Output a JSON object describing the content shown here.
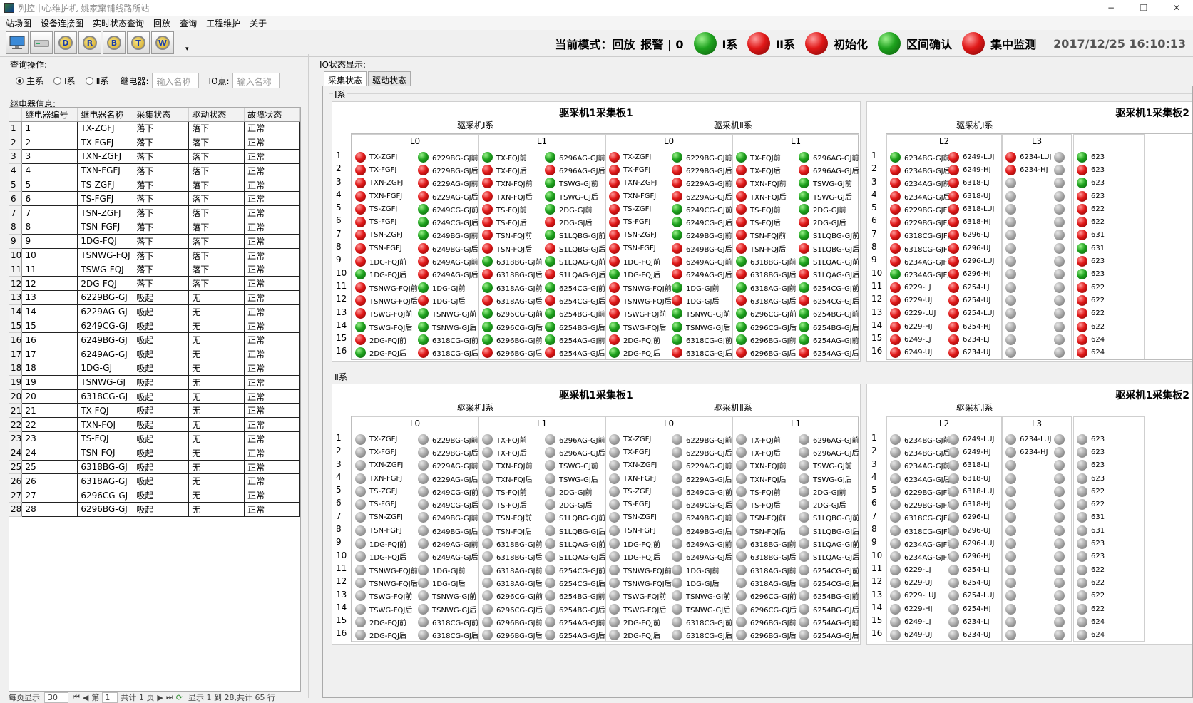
{
  "window": {
    "title": "列控中心维护机-姚家窠铺线路所站",
    "minimize": "−",
    "restore": "❐",
    "close": "✕"
  },
  "menu": [
    "站场图",
    "设备连接图",
    "实时状态查询",
    "回放",
    "查询",
    "工程维护",
    "关于"
  ],
  "toolbar": [
    {
      "label": "",
      "icon": "monitor-icon"
    },
    {
      "label": "",
      "icon": "drive-icon"
    },
    {
      "label": "D",
      "icon": "search-d-icon"
    },
    {
      "label": "R",
      "icon": "search-r-icon"
    },
    {
      "label": "B",
      "icon": "search-b-icon"
    },
    {
      "label": "T",
      "icon": "search-t-icon"
    },
    {
      "label": "W",
      "icon": "search-w-icon"
    }
  ],
  "toolbar_more": "▾",
  "status": {
    "mode": "当前模式：回放",
    "alarm": "报警 | 0",
    "sys1": "Ⅰ系",
    "sys2": "Ⅱ系",
    "init": "初始化",
    "section": "区间确认",
    "monitor": "集中监测",
    "time": "2017/12/25 16:10:13",
    "sys1_led": "green",
    "sys2_led": "red",
    "init_led": "red",
    "section_led": "green",
    "monitor_led": "red"
  },
  "query": {
    "title": "查询操作:",
    "opt_main": "主系",
    "opt_sys1": "Ⅰ系",
    "opt_sys2": "Ⅱ系",
    "relay_label": "继电器:",
    "relay_placeholder": "输入名称",
    "io_label": "IO点:",
    "io_placeholder": "输入名称"
  },
  "relay": {
    "title": "继电器信息:",
    "headers": [
      "继电器编号",
      "继电器名称",
      "采集状态",
      "驱动状态",
      "故障状态"
    ],
    "rows": [
      [
        "1",
        "TX-ZGFJ",
        "落下",
        "落下",
        "正常"
      ],
      [
        "2",
        "TX-FGFJ",
        "落下",
        "落下",
        "正常"
      ],
      [
        "3",
        "TXN-ZGFJ",
        "落下",
        "落下",
        "正常"
      ],
      [
        "4",
        "TXN-FGFJ",
        "落下",
        "落下",
        "正常"
      ],
      [
        "5",
        "TS-ZGFJ",
        "落下",
        "落下",
        "正常"
      ],
      [
        "6",
        "TS-FGFJ",
        "落下",
        "落下",
        "正常"
      ],
      [
        "7",
        "TSN-ZGFJ",
        "落下",
        "落下",
        "正常"
      ],
      [
        "8",
        "TSN-FGFJ",
        "落下",
        "落下",
        "正常"
      ],
      [
        "9",
        "1DG-FQJ",
        "落下",
        "落下",
        "正常"
      ],
      [
        "10",
        "TSNWG-FQJ",
        "落下",
        "落下",
        "正常"
      ],
      [
        "11",
        "TSWG-FQJ",
        "落下",
        "落下",
        "正常"
      ],
      [
        "12",
        "2DG-FQJ",
        "落下",
        "落下",
        "正常"
      ],
      [
        "13",
        "6229BG-GJ",
        "吸起",
        "无",
        "正常"
      ],
      [
        "14",
        "6229AG-GJ",
        "吸起",
        "无",
        "正常"
      ],
      [
        "15",
        "6249CG-GJ",
        "吸起",
        "无",
        "正常"
      ],
      [
        "16",
        "6249BG-GJ",
        "吸起",
        "无",
        "正常"
      ],
      [
        "17",
        "6249AG-GJ",
        "吸起",
        "无",
        "正常"
      ],
      [
        "18",
        "1DG-GJ",
        "吸起",
        "无",
        "正常"
      ],
      [
        "19",
        "TSNWG-GJ",
        "吸起",
        "无",
        "正常"
      ],
      [
        "20",
        "6318CG-GJ",
        "吸起",
        "无",
        "正常"
      ],
      [
        "21",
        "TX-FQJ",
        "吸起",
        "无",
        "正常"
      ],
      [
        "22",
        "TXN-FQJ",
        "吸起",
        "无",
        "正常"
      ],
      [
        "23",
        "TS-FQJ",
        "吸起",
        "无",
        "正常"
      ],
      [
        "24",
        "TSN-FQJ",
        "吸起",
        "无",
        "正常"
      ],
      [
        "25",
        "6318BG-GJ",
        "吸起",
        "无",
        "正常"
      ],
      [
        "26",
        "6318AG-GJ",
        "吸起",
        "无",
        "正常"
      ],
      [
        "27",
        "6296CG-GJ",
        "吸起",
        "无",
        "正常"
      ],
      [
        "28",
        "6296BG-GJ",
        "吸起",
        "无",
        "正常"
      ]
    ]
  },
  "pager": {
    "text1": "每页显示",
    "size": "30",
    "text2": "第",
    "page": "1",
    "text3": "共计 1 页",
    "text4": "显示 1 到 28,共计 65 行"
  },
  "io": {
    "title": "IO状态显示:",
    "tabs": [
      "采集状态",
      "驱动状态"
    ],
    "sys1": "Ⅰ系",
    "sys2": "Ⅱ系",
    "board1": "驱采机1采集板1",
    "board2": "驱采机1采集板2",
    "mach1": "驱采机Ⅰ系",
    "mach2": "驱采机Ⅱ系",
    "card_L0": "L0",
    "card_L1": "L1",
    "card_L2": "L2",
    "card_L3": "L3",
    "rows": [
      "1",
      "2",
      "3",
      "4",
      "5",
      "6",
      "7",
      "8",
      "9",
      "10",
      "11",
      "12",
      "13",
      "14",
      "15",
      "16"
    ],
    "L0a": [
      "TX-ZGFJ",
      "TX-FGFJ",
      "TXN-ZGFJ",
      "TXN-FGFJ",
      "TS-ZGFJ",
      "TS-FGFJ",
      "TSN-ZGFJ",
      "TSN-FGFJ",
      "1DG-FQJ前",
      "1DG-FQJ后",
      "TSNWG-FQJ前",
      "TSNWG-FQJ后",
      "TSWG-FQJ前",
      "TSWG-FQJ后",
      "2DG-FQJ前",
      "2DG-FQJ后"
    ],
    "L0b": [
      "6229BG-GJ前",
      "6229BG-GJ后",
      "6229AG-GJ前",
      "6229AG-GJ后",
      "6249CG-GJ前",
      "6249CG-GJ后",
      "6249BG-GJ前",
      "6249BG-GJ后",
      "6249AG-GJ前",
      "6249AG-GJ后",
      "1DG-GJ前",
      "1DG-GJ后",
      "TSNWG-GJ前",
      "TSNWG-GJ后",
      "6318CG-GJ前",
      "6318CG-GJ后"
    ],
    "L1a": [
      "TX-FQJ前",
      "TX-FQJ后",
      "TXN-FQJ前",
      "TXN-FQJ后",
      "TS-FQJ前",
      "TS-FQJ后",
      "TSN-FQJ前",
      "TSN-FQJ后",
      "6318BG-GJ前",
      "6318BG-GJ后",
      "6318AG-GJ前",
      "6318AG-GJ后",
      "6296CG-GJ前",
      "6296CG-GJ后",
      "6296BG-GJ前",
      "6296BG-GJ后"
    ],
    "L1b": [
      "6296AG-GJ前",
      "6296AG-GJ后",
      "TSWG-GJ前",
      "TSWG-GJ后",
      "2DG-GJ前",
      "2DG-GJ后",
      "S1LQBG-GJ前",
      "S1LQBG-GJ后",
      "S1LQAG-GJ前",
      "S1LQAG-GJ后",
      "6254CG-GJ前",
      "6254CG-GJ后",
      "6254BG-GJ前",
      "6254BG-GJ后",
      "6254AG-GJ前",
      "6254AG-GJ后"
    ],
    "L2a": [
      "6234BG-GJ前",
      "6234BG-GJ后",
      "6234AG-GJ前",
      "6234AG-GJ后",
      "6229BG-GJF前",
      "6229BG-GJF后",
      "6318CG-GJF前",
      "6318CG-GJF后",
      "6234AG-GJF前",
      "6234AG-GJF后",
      "6229-LJ",
      "6229-UJ",
      "6229-LUJ",
      "6229-HJ",
      "6249-LJ",
      "6249-UJ"
    ],
    "L2b": [
      "6249-LUJ",
      "6249-HJ",
      "6318-LJ",
      "6318-UJ",
      "6318-LUJ",
      "6318-HJ",
      "6296-LJ",
      "6296-UJ",
      "6296-LUJ",
      "6296-HJ",
      "6254-LJ",
      "6254-UJ",
      "6254-LUJ",
      "6254-HJ",
      "6234-LJ",
      "6234-UJ"
    ],
    "L3a": [
      "6234-LUJ",
      "6234-HJ",
      "",
      "",
      "",
      "",
      "",
      "",
      "",
      "",
      "",
      "",
      "",
      "",
      "",
      ""
    ],
    "L3b": [
      "",
      "",
      "",
      "",
      "",
      "",
      "",
      "",
      "",
      "",
      "",
      "",
      "",
      "",
      "",
      ""
    ],
    "L3c": [
      "623",
      "623",
      "623",
      "623",
      "622",
      "622",
      "631",
      "631",
      "623",
      "623",
      "622",
      "622",
      "622",
      "622",
      "624",
      "624"
    ],
    "s1_L0a": [
      "r",
      "r",
      "r",
      "r",
      "r",
      "r",
      "r",
      "r",
      "r",
      "g",
      "r",
      "r",
      "r",
      "g",
      "r",
      "g"
    ],
    "s1_L0b": [
      "g",
      "r",
      "r",
      "r",
      "g",
      "g",
      "g",
      "r",
      "r",
      "r",
      "g",
      "r",
      "g",
      "g",
      "g",
      "r"
    ],
    "s1_L1a": [
      "g",
      "r",
      "r",
      "r",
      "r",
      "r",
      "r",
      "r",
      "g",
      "r",
      "g",
      "r",
      "g",
      "g",
      "g",
      "r"
    ],
    "s1_L1b": [
      "g",
      "r",
      "g",
      "g",
      "g",
      "r",
      "g",
      "r",
      "g",
      "r",
      "g",
      "r",
      "g",
      "g",
      "g",
      "r"
    ],
    "s1_L2a": [
      "g",
      "r",
      "r",
      "r",
      "r",
      "r",
      "r",
      "r",
      "r",
      "g",
      "r",
      "r",
      "r",
      "r",
      "r",
      "r"
    ],
    "s1_L2b": [
      "r",
      "r",
      "r",
      "r",
      "r",
      "r",
      "r",
      "r",
      "r",
      "r",
      "r",
      "r",
      "r",
      "r",
      "r",
      "r"
    ],
    "s1_L3a": [
      "r",
      "r",
      "x",
      "x",
      "x",
      "x",
      "x",
      "x",
      "x",
      "x",
      "x",
      "x",
      "x",
      "x",
      "x",
      "x"
    ],
    "s1_L3b": [
      "x",
      "x",
      "x",
      "x",
      "x",
      "x",
      "x",
      "x",
      "x",
      "x",
      "x",
      "x",
      "x",
      "x",
      "x",
      "x"
    ],
    "s1_L3c": [
      "g",
      "r",
      "g",
      "r",
      "r",
      "r",
      "r",
      "g",
      "r",
      "g",
      "r",
      "r",
      "r",
      "r",
      "r",
      "r"
    ]
  }
}
